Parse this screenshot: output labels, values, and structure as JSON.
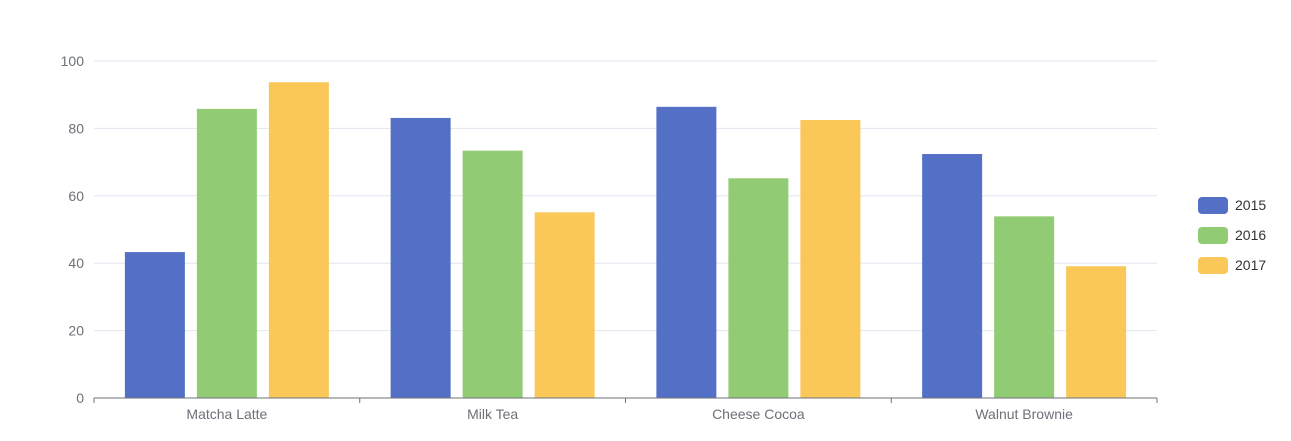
{
  "chart_data": {
    "type": "bar",
    "title": "",
    "xlabel": "",
    "ylabel": "",
    "categories": [
      "Matcha Latte",
      "Milk Tea",
      "Cheese Cocoa",
      "Walnut Brownie"
    ],
    "series": [
      {
        "name": "2015",
        "color": "#5470c6",
        "values": [
          43.3,
          83.1,
          86.4,
          72.4
        ]
      },
      {
        "name": "2016",
        "color": "#91cc75",
        "values": [
          85.8,
          73.4,
          65.2,
          53.9
        ]
      },
      {
        "name": "2017",
        "color": "#fac858",
        "values": [
          93.7,
          55.1,
          82.5,
          39.1
        ]
      }
    ],
    "ylim": [
      0,
      100
    ],
    "yticks": [
      "0",
      "20",
      "40",
      "60",
      "80",
      "100"
    ],
    "grid": true,
    "legend_position": "right"
  }
}
